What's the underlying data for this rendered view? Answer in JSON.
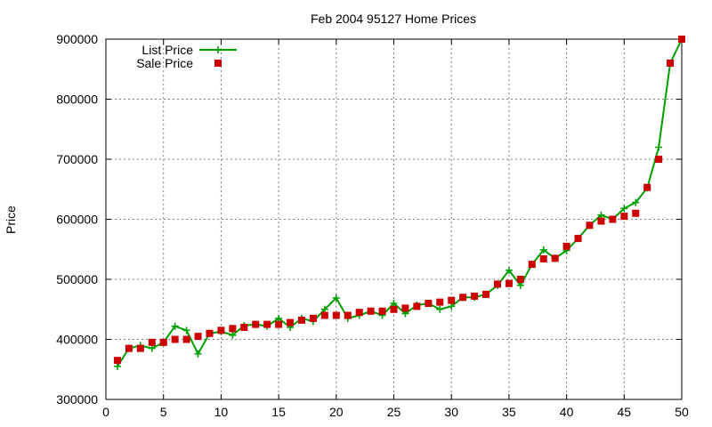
{
  "chart_data": {
    "type": "line",
    "title": "Feb 2004 95127 Home Prices",
    "xlabel": "",
    "ylabel": "Price",
    "xlim": [
      0,
      50
    ],
    "ylim": [
      300000,
      900000
    ],
    "xticks": [
      0,
      5,
      10,
      15,
      20,
      25,
      30,
      35,
      40,
      45,
      50
    ],
    "yticks": [
      300000,
      400000,
      500000,
      600000,
      700000,
      800000,
      900000
    ],
    "grid": true,
    "legend_position": "top-left",
    "series": [
      {
        "name": "List Price",
        "style": "line-with-plus-markers",
        "color": "#00a000",
        "x": [
          1,
          2,
          3,
          4,
          5,
          6,
          7,
          8,
          9,
          10,
          11,
          12,
          13,
          14,
          15,
          16,
          17,
          18,
          19,
          20,
          21,
          22,
          23,
          24,
          25,
          26,
          27,
          28,
          29,
          30,
          31,
          32,
          33,
          34,
          35,
          36,
          37,
          38,
          39,
          40,
          41,
          42,
          43,
          44,
          45,
          46,
          47,
          48,
          49,
          50
        ],
        "values": [
          355000,
          385000,
          390000,
          385000,
          395000,
          422000,
          415000,
          376000,
          410000,
          413000,
          407000,
          423000,
          425000,
          422000,
          435000,
          420000,
          435000,
          430000,
          450000,
          469000,
          435000,
          440000,
          447000,
          440000,
          460000,
          443000,
          457000,
          460000,
          450000,
          455000,
          470000,
          470000,
          475000,
          490000,
          515000,
          490000,
          525000,
          549000,
          535000,
          548000,
          568000,
          590000,
          607000,
          600000,
          618000,
          628000,
          652000,
          720000,
          860000,
          900000
        ]
      },
      {
        "name": "Sale Price",
        "style": "square-markers",
        "color": "#cc0000",
        "x": [
          1,
          2,
          3,
          4,
          5,
          6,
          7,
          8,
          9,
          10,
          11,
          12,
          13,
          14,
          15,
          16,
          17,
          18,
          19,
          20,
          21,
          22,
          23,
          24,
          25,
          26,
          27,
          28,
          29,
          30,
          31,
          32,
          33,
          34,
          35,
          36,
          37,
          38,
          39,
          40,
          41,
          42,
          43,
          44,
          45,
          46,
          47,
          48,
          49,
          50
        ],
        "values": [
          365000,
          385000,
          385000,
          395000,
          395000,
          400000,
          400000,
          405000,
          410000,
          415000,
          418000,
          420000,
          425000,
          425000,
          425000,
          428000,
          432000,
          435000,
          440000,
          440000,
          440000,
          445000,
          447000,
          447000,
          450000,
          452000,
          455000,
          460000,
          462000,
          465000,
          470000,
          472000,
          475000,
          492000,
          493000,
          500000,
          525000,
          534000,
          535000,
          555000,
          568000,
          590000,
          597000,
          600000,
          605000,
          610000,
          653000,
          700000,
          860000,
          900000
        ]
      }
    ]
  }
}
